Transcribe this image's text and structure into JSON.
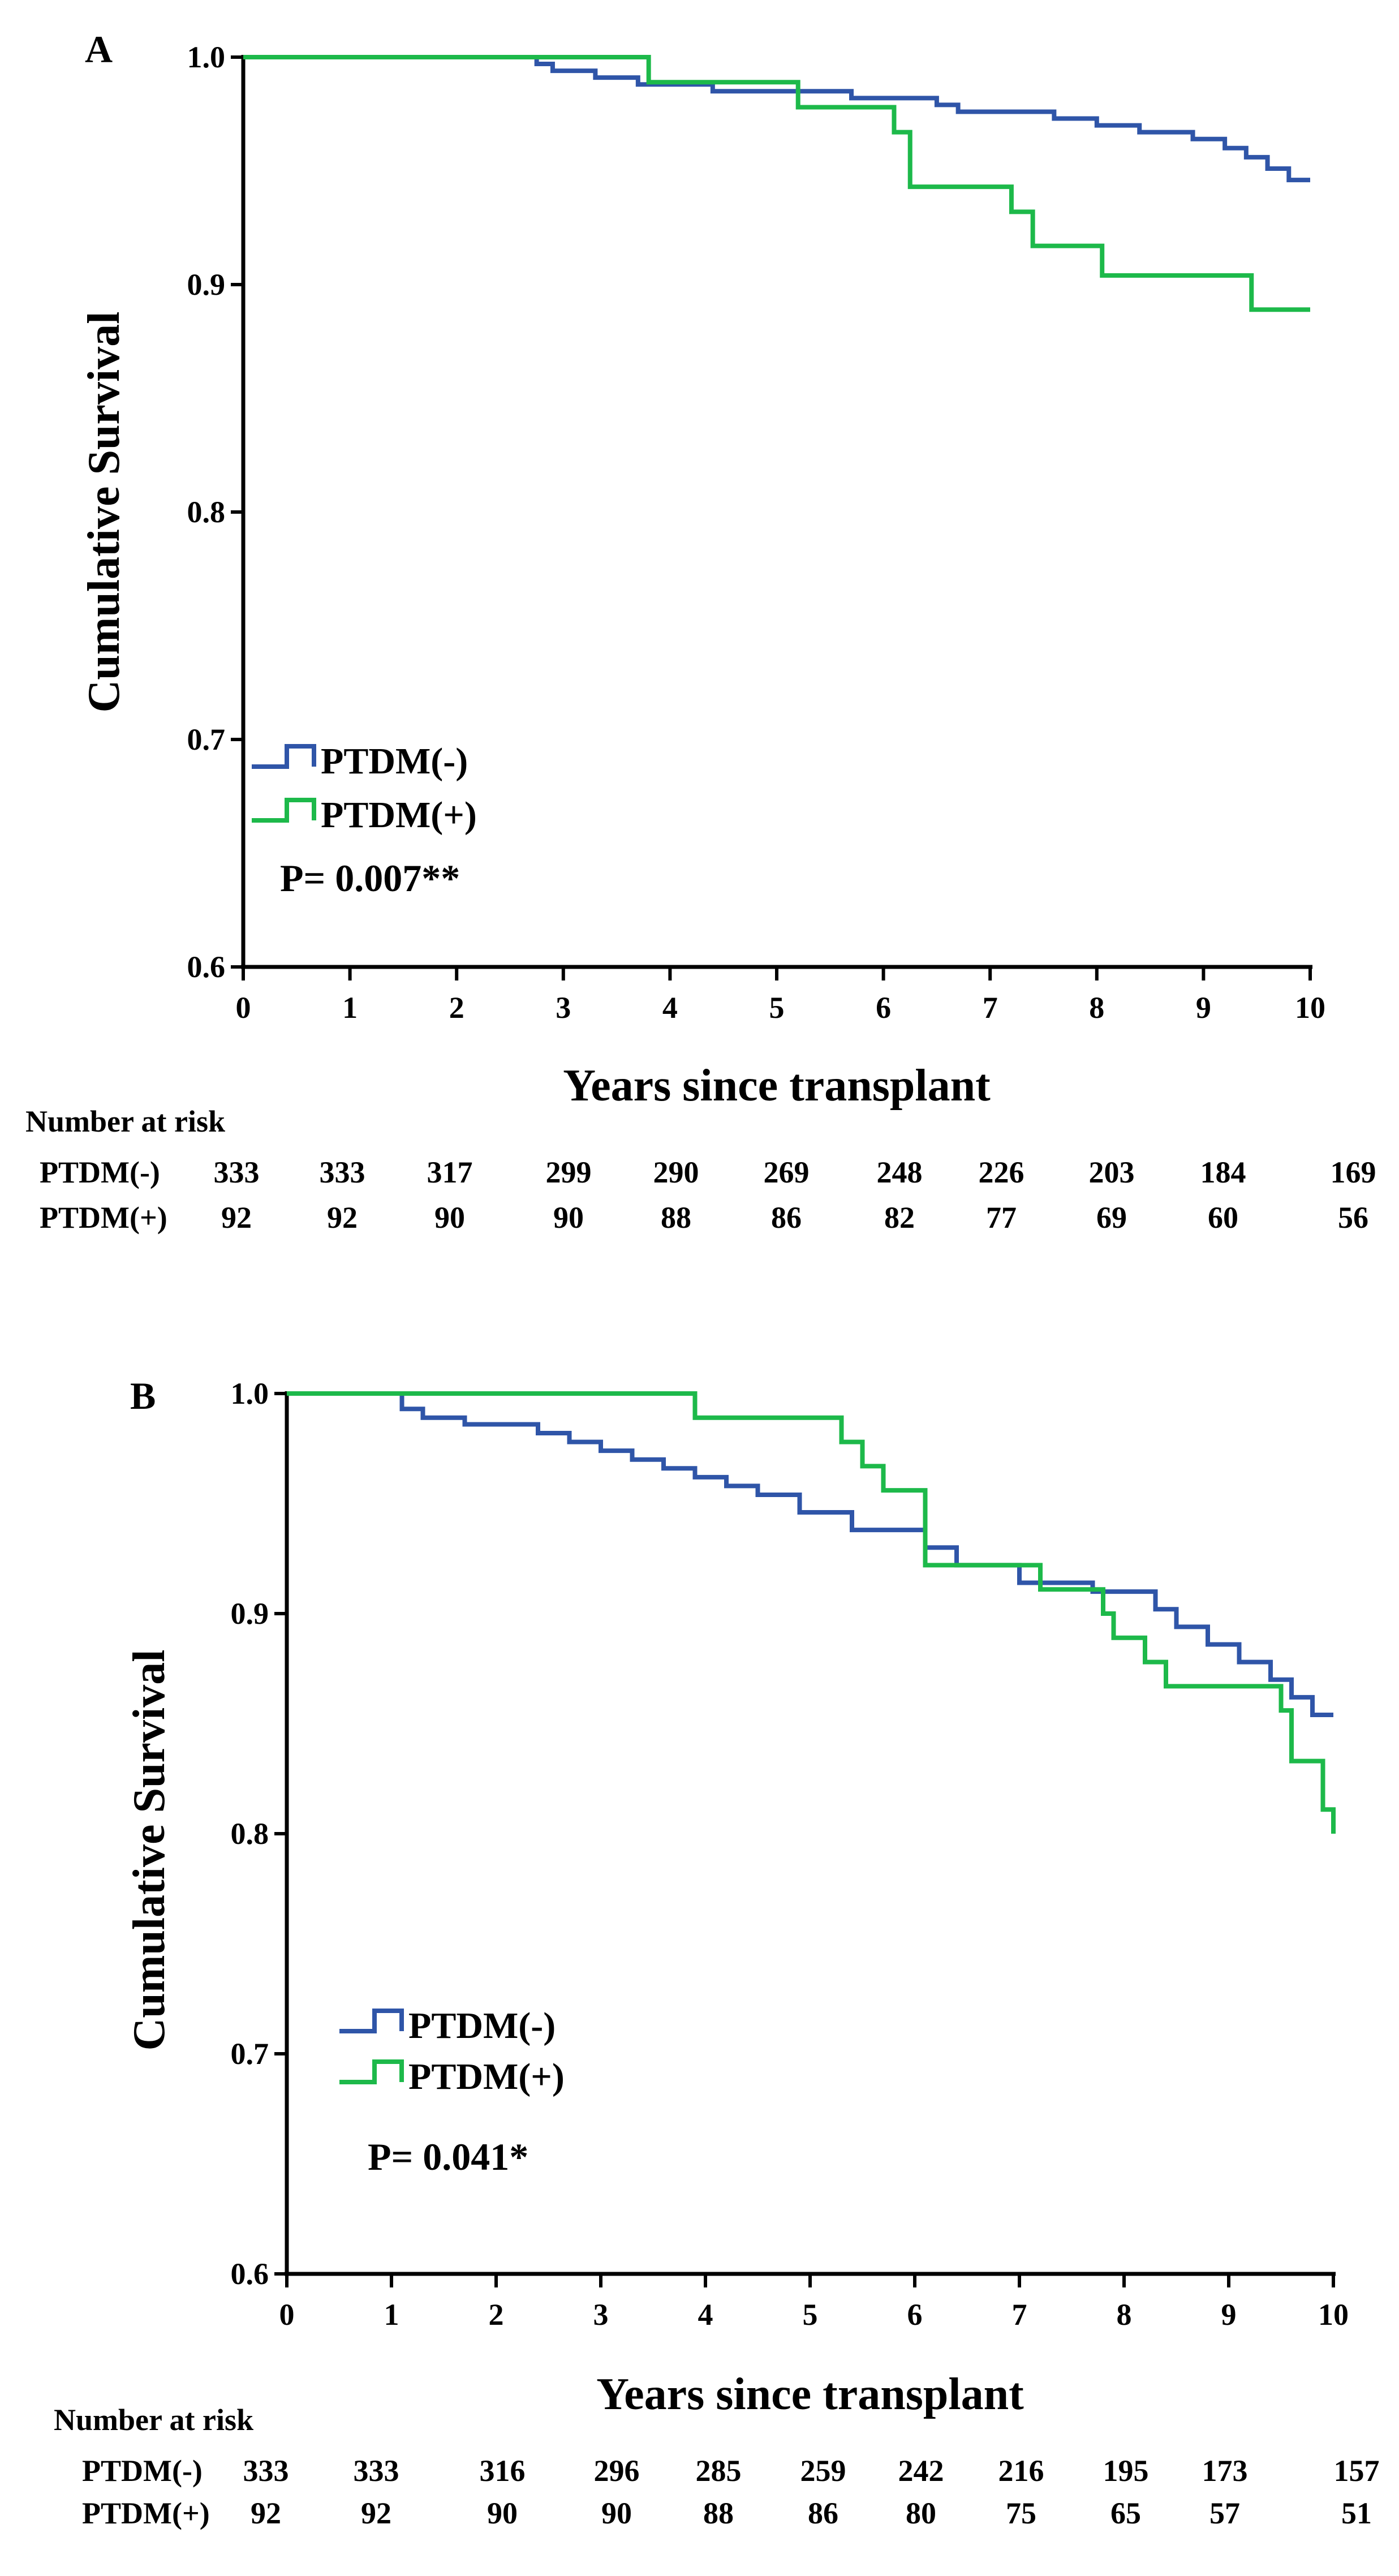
{
  "colors": {
    "ptdm_neg": "#2f55a8",
    "ptdm_pos": "#1db94a",
    "axis": "#000000"
  },
  "chart_data": [
    {
      "type": "line",
      "step": true,
      "panel_label": "A",
      "xlabel": "Years since transplant",
      "ylabel": "Cumulative Survival",
      "xlim": [
        0,
        10
      ],
      "ylim": [
        0.6,
        1.0
      ],
      "xticks": [
        "0",
        "1",
        "2",
        "3",
        "4",
        "5",
        "6",
        "7",
        "8",
        "9",
        "10"
      ],
      "yticks": [
        "0.6",
        "0.7",
        "0.8",
        "0.9",
        "1.0"
      ],
      "legend": [
        "PTDM(-)",
        "PTDM(+)"
      ],
      "p_value": "P= 0.007**",
      "series": [
        {
          "name": "PTDM(-)",
          "color_key": "ptdm_neg",
          "x": [
            0,
            2.75,
            2.9,
            3.3,
            3.7,
            4.4,
            5.7,
            6.5,
            6.7,
            7.1,
            7.6,
            8.0,
            8.4,
            8.9,
            9.2,
            9.4,
            9.6,
            9.8,
            10
          ],
          "y": [
            1.0,
            0.997,
            0.994,
            0.991,
            0.988,
            0.985,
            0.982,
            0.979,
            0.976,
            0.976,
            0.973,
            0.97,
            0.967,
            0.964,
            0.96,
            0.956,
            0.951,
            0.946,
            0.946
          ]
        },
        {
          "name": "PTDM(+)",
          "color_key": "ptdm_pos",
          "x": [
            0,
            3.8,
            5.2,
            6.1,
            6.25,
            7.2,
            7.4,
            8.05,
            9.45,
            10
          ],
          "y": [
            1.0,
            0.989,
            0.978,
            0.967,
            0.943,
            0.932,
            0.917,
            0.904,
            0.889,
            0.889
          ]
        }
      ],
      "risk_table": {
        "title": "Number at risk",
        "rows": [
          {
            "label": "PTDM(-)",
            "values": [
              "333",
              "333",
              "317",
              "299",
              "290",
              "269",
              "248",
              "226",
              "203",
              "184",
              "169"
            ]
          },
          {
            "label": "PTDM(+)",
            "values": [
              "92",
              "92",
              "90",
              "90",
              "88",
              "86",
              "82",
              "77",
              "69",
              "60",
              "56"
            ]
          }
        ]
      }
    },
    {
      "type": "line",
      "step": true,
      "panel_label": "B",
      "xlabel": "Years since transplant",
      "ylabel": "Cumulative Survival",
      "xlim": [
        0,
        10
      ],
      "ylim": [
        0.6,
        1.0
      ],
      "xticks": [
        "0",
        "1",
        "2",
        "3",
        "4",
        "5",
        "6",
        "7",
        "8",
        "9",
        "10"
      ],
      "yticks": [
        "0.6",
        "0.7",
        "0.8",
        "0.9",
        "1.0"
      ],
      "legend": [
        "PTDM(-)",
        "PTDM(+)"
      ],
      "p_value": "P= 0.041*",
      "series": [
        {
          "name": "PTDM(-)",
          "color_key": "ptdm_neg",
          "x": [
            0,
            1.1,
            1.3,
            1.7,
            2.4,
            2.7,
            3.0,
            3.3,
            3.6,
            3.9,
            4.2,
            4.5,
            4.9,
            5.4,
            6.1,
            6.4,
            7.0,
            7.7,
            8.3,
            8.5,
            8.8,
            9.1,
            9.4,
            9.6,
            9.8,
            10
          ],
          "y": [
            1.0,
            0.993,
            0.989,
            0.986,
            0.982,
            0.978,
            0.974,
            0.97,
            0.966,
            0.962,
            0.958,
            0.954,
            0.946,
            0.938,
            0.93,
            0.922,
            0.914,
            0.91,
            0.902,
            0.894,
            0.886,
            0.878,
            0.87,
            0.862,
            0.854,
            0.854
          ]
        },
        {
          "name": "PTDM(+)",
          "color_key": "ptdm_pos",
          "x": [
            0,
            3.9,
            5.3,
            5.5,
            5.7,
            6.1,
            7.2,
            7.8,
            7.9,
            8.2,
            8.4,
            9.5,
            9.6,
            9.9,
            10
          ],
          "y": [
            1.0,
            0.989,
            0.978,
            0.967,
            0.956,
            0.922,
            0.911,
            0.9,
            0.889,
            0.878,
            0.867,
            0.856,
            0.833,
            0.811,
            0.8
          ]
        }
      ],
      "risk_table": {
        "title": "Number at risk",
        "rows": [
          {
            "label": "PTDM(-)",
            "values": [
              "333",
              "333",
              "316",
              "296",
              "285",
              "259",
              "242",
              "216",
              "195",
              "173",
              "157"
            ]
          },
          {
            "label": "PTDM(+)",
            "values": [
              "92",
              "92",
              "90",
              "90",
              "88",
              "86",
              "80",
              "75",
              "65",
              "57",
              "51"
            ]
          }
        ]
      }
    }
  ]
}
